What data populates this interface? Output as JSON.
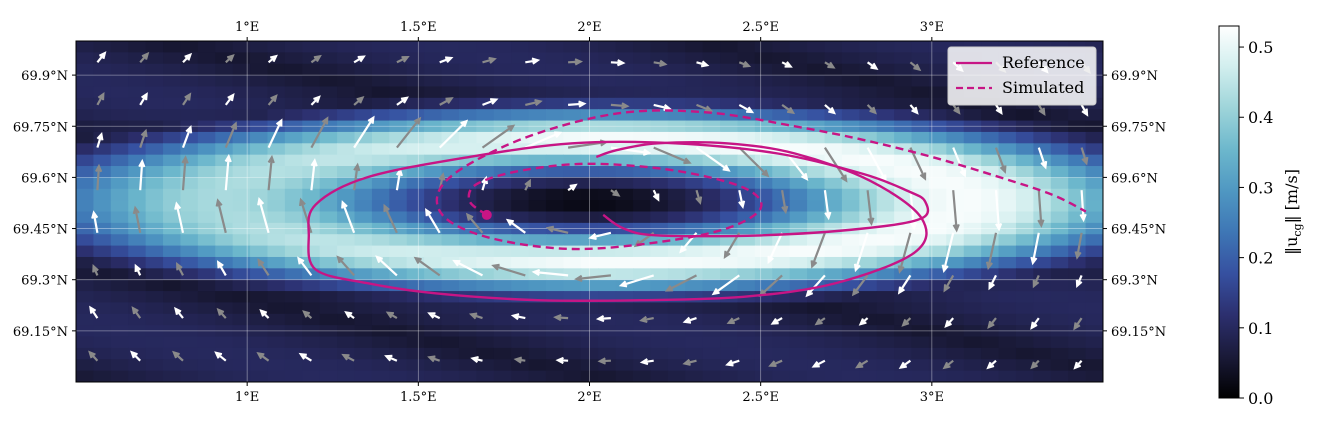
{
  "chart_data": {
    "type": "heatmap",
    "title": "",
    "x_ticks": [
      "1°E",
      "1.5°E",
      "2°E",
      "2.5°E",
      "3°E"
    ],
    "x_tick_values": [
      1.0,
      1.5,
      2.0,
      2.5,
      3.0
    ],
    "y_ticks": [
      "69.9°N",
      "69.75°N",
      "69.6°N",
      "69.45°N",
      "69.3°N",
      "69.15°N"
    ],
    "y_tick_values": [
      69.9,
      69.75,
      69.6,
      69.45,
      69.3,
      69.15
    ],
    "xlim": [
      0.5,
      3.5
    ],
    "ylim": [
      69.0,
      70.0
    ],
    "grid": true,
    "colorbar": {
      "label": "‖u_cg‖ [m/s]",
      "label_main": "‖u",
      "label_sub": "cg",
      "label_tail": "‖ [m/s]",
      "ticks": [
        "0.0",
        "0.1",
        "0.2",
        "0.3",
        "0.4",
        "0.5"
      ],
      "tick_values": [
        0.0,
        0.1,
        0.2,
        0.3,
        0.4,
        0.5
      ],
      "range": [
        0.0,
        0.53
      ],
      "colormap": [
        "#000000",
        "#1a1a38",
        "#2c2f6e",
        "#3650a0",
        "#3e76b5",
        "#4f97c2",
        "#6cb7cc",
        "#9dd4d9",
        "#d1eeee",
        "#ffffff"
      ]
    },
    "legend": {
      "placement": "top-right",
      "entries": [
        {
          "label": "Reference",
          "style": "solid",
          "color": "#c71585"
        },
        {
          "label": "Simulated",
          "style": "dashed",
          "color": "#c71585"
        }
      ]
    },
    "eddy_field": {
      "center": [
        2.0,
        69.53
      ],
      "peak_speed_ring": 0.52,
      "core_speed": 0.0
    },
    "series": [
      {
        "name": "Reference",
        "style": "solid",
        "color": "#c71585",
        "x": [
          2.04,
          2.1,
          2.2,
          2.5,
          2.8,
          2.97,
          2.98,
          2.93,
          2.8,
          2.55,
          2.25,
          1.95,
          1.65,
          1.35,
          1.2,
          1.18,
          1.2,
          1.35,
          1.55,
          1.85,
          2.15,
          2.45,
          2.72,
          2.95,
          2.97,
          2.82,
          2.6,
          2.4,
          2.2,
          2.08,
          2.02
        ],
        "y": [
          69.49,
          69.45,
          69.43,
          69.43,
          69.45,
          69.48,
          69.53,
          69.56,
          69.61,
          69.67,
          69.7,
          69.7,
          69.66,
          69.6,
          69.52,
          69.43,
          69.33,
          69.29,
          69.26,
          69.24,
          69.24,
          69.25,
          69.29,
          69.38,
          69.48,
          69.59,
          69.67,
          69.7,
          69.7,
          69.68,
          69.66
        ]
      },
      {
        "name": "Simulated",
        "style": "dashed",
        "color": "#c71585",
        "x": [
          1.7,
          1.65,
          1.67,
          1.8,
          2.0,
          2.25,
          2.45,
          2.5,
          2.4,
          2.2,
          1.95,
          1.72,
          1.58,
          1.56,
          1.65,
          1.85,
          2.1,
          2.35,
          2.6,
          2.8,
          3.0,
          3.2,
          3.35,
          3.45
        ],
        "y": [
          69.49,
          69.53,
          69.58,
          69.62,
          69.64,
          69.62,
          69.57,
          69.51,
          69.45,
          69.41,
          69.39,
          69.42,
          69.48,
          69.56,
          69.64,
          69.73,
          69.79,
          69.79,
          69.75,
          69.71,
          69.66,
          69.6,
          69.55,
          69.5
        ]
      }
    ],
    "start_marker": {
      "x": 1.7,
      "y": 69.49,
      "color": "#c71585"
    }
  }
}
